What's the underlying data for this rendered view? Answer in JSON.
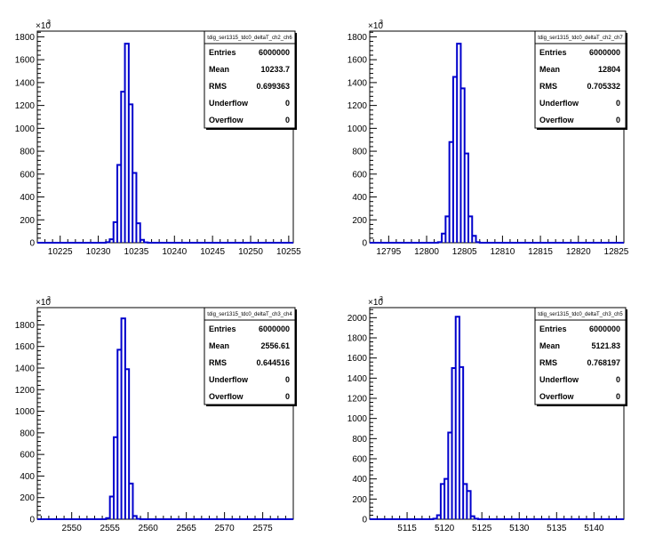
{
  "chart_data": [
    {
      "type": "bar",
      "title": "",
      "stats_title": "tdig_ser1315_tdc0_deltaT_ch2_ch6",
      "stats": [
        {
          "label": "Entries",
          "value": "6000000"
        },
        {
          "label": "Mean",
          "value": "10233.7"
        },
        {
          "label": "RMS",
          "value": "0.699363"
        },
        {
          "label": "Underflow",
          "value": "0"
        },
        {
          "label": "Overflow",
          "value": "0"
        }
      ],
      "xlim": [
        10222,
        10255.6
      ],
      "ylim": [
        0,
        1850
      ],
      "xticks": [
        "10225",
        "10230",
        "10235",
        "10240",
        "10245",
        "10250",
        "10255"
      ],
      "xtick_values": [
        10225,
        10230,
        10235,
        10240,
        10245,
        10250,
        10255
      ],
      "yticks": [
        "0",
        "200",
        "400",
        "600",
        "800",
        "1000",
        "1200",
        "1400",
        "1600",
        "1800"
      ],
      "ytick_values": [
        0,
        200,
        400,
        600,
        800,
        1000,
        1200,
        1400,
        1600,
        1800
      ],
      "y_exponent_label": "×10",
      "y_exponent_power": "3",
      "bin_width": 0.5,
      "bins": [
        [
          10231.0,
          5
        ],
        [
          10231.5,
          30
        ],
        [
          10232.0,
          180
        ],
        [
          10232.5,
          680
        ],
        [
          10233.0,
          1320
        ],
        [
          10233.5,
          1740
        ],
        [
          10234.0,
          1210
        ],
        [
          10234.5,
          610
        ],
        [
          10235.0,
          170
        ],
        [
          10235.5,
          25
        ],
        [
          10236.0,
          3
        ]
      ]
    },
    {
      "type": "bar",
      "title": "",
      "stats_title": "tdig_ser1315_tdc0_deltaT_ch2_ch7",
      "stats": [
        {
          "label": "Entries",
          "value": "6000000"
        },
        {
          "label": "Mean",
          "value": "12804"
        },
        {
          "label": "RMS",
          "value": "0.705332"
        },
        {
          "label": "Underflow",
          "value": "0"
        },
        {
          "label": "Overflow",
          "value": "0"
        }
      ],
      "xlim": [
        12792.5,
        12826
      ],
      "ylim": [
        0,
        1850
      ],
      "xticks": [
        "12795",
        "12800",
        "12805",
        "12810",
        "12815",
        "12820",
        "12825"
      ],
      "xtick_values": [
        12795,
        12800,
        12805,
        12810,
        12815,
        12820,
        12825
      ],
      "yticks": [
        "0",
        "200",
        "400",
        "600",
        "800",
        "1000",
        "1200",
        "1400",
        "1600",
        "1800"
      ],
      "ytick_values": [
        0,
        200,
        400,
        600,
        800,
        1000,
        1200,
        1400,
        1600,
        1800
      ],
      "y_exponent_label": "×10",
      "y_exponent_power": "3",
      "bin_width": 0.5,
      "bins": [
        [
          12801.5,
          5
        ],
        [
          12802.0,
          80
        ],
        [
          12802.5,
          230
        ],
        [
          12803.0,
          880
        ],
        [
          12803.5,
          1450
        ],
        [
          12804.0,
          1740
        ],
        [
          12804.5,
          1350
        ],
        [
          12805.0,
          780
        ],
        [
          12805.5,
          230
        ],
        [
          12806.0,
          60
        ],
        [
          12806.5,
          5
        ]
      ]
    },
    {
      "type": "bar",
      "title": "",
      "stats_title": "tdig_ser1315_tdc0_deltaT_ch3_ch4",
      "stats": [
        {
          "label": "Entries",
          "value": "6000000"
        },
        {
          "label": "Mean",
          "value": "2556.61"
        },
        {
          "label": "RMS",
          "value": "0.644516"
        },
        {
          "label": "Underflow",
          "value": "0"
        },
        {
          "label": "Overflow",
          "value": "0"
        }
      ],
      "xlim": [
        2545.5,
        2579
      ],
      "ylim": [
        0,
        1960
      ],
      "xticks": [
        "2550",
        "2555",
        "2560",
        "2565",
        "2570",
        "2575"
      ],
      "xtick_values": [
        2550,
        2555,
        2560,
        2565,
        2570,
        2575
      ],
      "yticks": [
        "0",
        "200",
        "400",
        "600",
        "800",
        "1000",
        "1200",
        "1400",
        "1600",
        "1800"
      ],
      "ytick_values": [
        0,
        200,
        400,
        600,
        800,
        1000,
        1200,
        1400,
        1600,
        1800
      ],
      "y_exponent_label": "×10",
      "y_exponent_power": "3",
      "bin_width": 0.5,
      "bins": [
        [
          2554.5,
          10
        ],
        [
          2555.0,
          210
        ],
        [
          2555.5,
          760
        ],
        [
          2556.0,
          1570
        ],
        [
          2556.5,
          1860
        ],
        [
          2557.0,
          1390
        ],
        [
          2557.5,
          330
        ],
        [
          2558.0,
          30
        ],
        [
          2558.5,
          3
        ]
      ]
    },
    {
      "type": "bar",
      "title": "",
      "stats_title": "tdig_ser1315_tdc0_deltaT_ch3_ch5",
      "stats": [
        {
          "label": "Entries",
          "value": "6000000"
        },
        {
          "label": "Mean",
          "value": "5121.83"
        },
        {
          "label": "RMS",
          "value": "0.768197"
        },
        {
          "label": "Underflow",
          "value": "0"
        },
        {
          "label": "Overflow",
          "value": "0"
        }
      ],
      "xlim": [
        5110,
        5144
      ],
      "ylim": [
        0,
        2100
      ],
      "xticks": [
        "5115",
        "5120",
        "5125",
        "5130",
        "5135",
        "5140"
      ],
      "xtick_values": [
        5115,
        5120,
        5125,
        5130,
        5135,
        5140
      ],
      "yticks": [
        "0",
        "200",
        "400",
        "600",
        "800",
        "1000",
        "1200",
        "1400",
        "1600",
        "1800",
        "2000"
      ],
      "ytick_values": [
        0,
        200,
        400,
        600,
        800,
        1000,
        1200,
        1400,
        1600,
        1800,
        2000
      ],
      "y_exponent_label": "×10",
      "y_exponent_power": "3",
      "bin_width": 0.5,
      "bins": [
        [
          5118.5,
          5
        ],
        [
          5119.0,
          40
        ],
        [
          5119.5,
          350
        ],
        [
          5120.0,
          400
        ],
        [
          5120.5,
          860
        ],
        [
          5121.0,
          1500
        ],
        [
          5121.5,
          2010
        ],
        [
          5122.0,
          1510
        ],
        [
          5122.5,
          350
        ],
        [
          5123.0,
          280
        ],
        [
          5123.5,
          30
        ],
        [
          5124.0,
          5
        ]
      ]
    }
  ]
}
